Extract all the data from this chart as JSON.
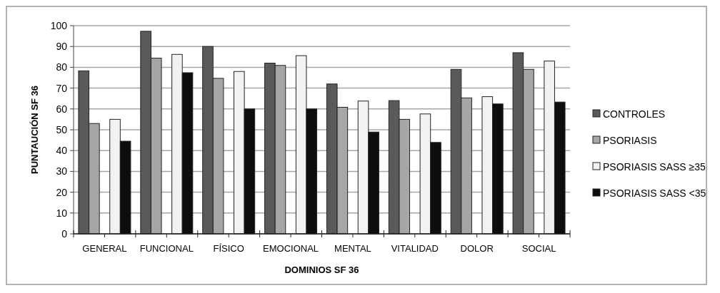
{
  "chart_data": {
    "type": "bar",
    "xlabel": "DOMINIOS SF 36",
    "ylabel": "PUNTAUCIÓN SF 36",
    "categories": [
      "GENERAL",
      "FUNCIONAL",
      "FÍSICO",
      "EMOCIONAL",
      "MENTAL",
      "VITALIDAD",
      "DOLOR",
      "SOCIAL"
    ],
    "series": [
      {
        "name": "CONTROLES",
        "color": "#5a5a5a",
        "values": [
          78.3,
          97.3,
          90,
          82,
          72,
          64,
          79,
          87
        ]
      },
      {
        "name": "PSORIASIS",
        "color": "#a6a6a6",
        "values": [
          53,
          84.4,
          74.7,
          80.9,
          60.8,
          55,
          65.3,
          79
        ]
      },
      {
        "name": "PSORIASIS SASS ≥35",
        "color": "#f2f2f2",
        "values": [
          55,
          86.2,
          78,
          85.6,
          63.8,
          57.6,
          65.9,
          83
        ]
      },
      {
        "name": "PSORIASIS SASS <35",
        "color": "#0d0d0d",
        "values": [
          44.5,
          77.4,
          60,
          60,
          48.9,
          43.9,
          62.4,
          63.3
        ]
      }
    ],
    "ylim": [
      0,
      100
    ],
    "yticks": [
      0,
      10,
      20,
      30,
      40,
      50,
      60,
      70,
      80,
      90,
      100
    ],
    "grid": "y",
    "legend": "right"
  }
}
